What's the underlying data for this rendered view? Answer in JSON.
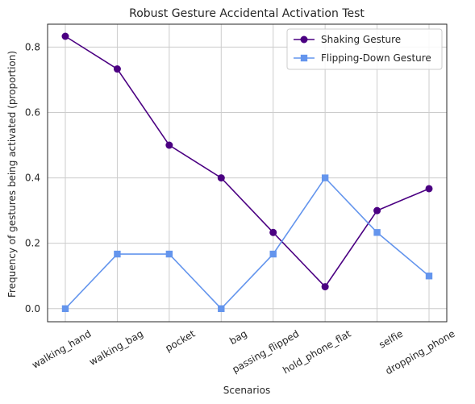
{
  "chart_data": {
    "type": "line",
    "title": "Robust Gesture Accidental Activation Test",
    "xlabel": "Scenarios",
    "ylabel": "Frequency of gestures being activated (proportion)",
    "categories": [
      "walking_hand",
      "walking_bag",
      "pocket",
      "bag",
      "passing_flipped",
      "hold_phone_flat",
      "selfie",
      "dropping_phone"
    ],
    "ylim": [
      -0.04,
      0.87
    ],
    "yticks": [
      0.0,
      0.2,
      0.4,
      0.6,
      0.8
    ],
    "ytick_labels": [
      "0.0",
      "0.2",
      "0.4",
      "0.6",
      "0.8"
    ],
    "grid": true,
    "legend_position": "top-right",
    "series": [
      {
        "name": "Shaking Gesture",
        "marker": "circle",
        "color": "#4b0082",
        "values": [
          0.833,
          0.733,
          0.5,
          0.4,
          0.233,
          0.067,
          0.3,
          0.367
        ]
      },
      {
        "name": "Flipping-Down Gesture",
        "marker": "square",
        "color": "#6495ed",
        "values": [
          0.0,
          0.167,
          0.167,
          0.0,
          0.167,
          0.4,
          0.233,
          0.1
        ]
      }
    ]
  }
}
